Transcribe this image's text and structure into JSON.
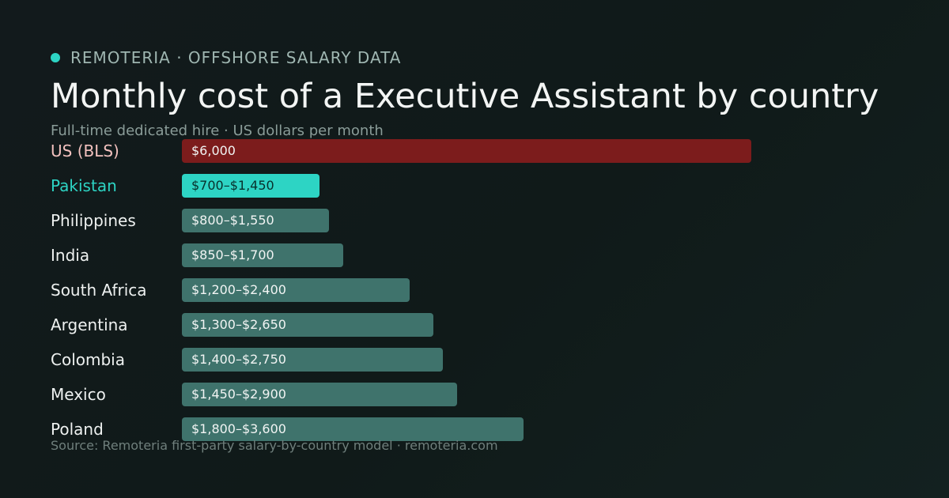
{
  "header": {
    "eyebrow": "REMOTERIA · OFFSHORE SALARY DATA",
    "title": "Monthly cost of a Executive Assistant by country",
    "subtitle": "Full-time dedicated hire · US dollars per month"
  },
  "footer": {
    "source": "Source: Remoteria first-party salary-by-country model · remoteria.com"
  },
  "colors": {
    "accent": "#2dd4c4",
    "us_bar": "#7c1c1c",
    "default_bar": "#3f736c",
    "background": "#121a1c"
  },
  "chart_data": {
    "type": "bar",
    "orientation": "horizontal",
    "title": "Monthly cost of a Executive Assistant by country",
    "subtitle": "Full-time dedicated hire · US dollars per month",
    "xmax": 6000,
    "rows": [
      {
        "category": "US (BLS)",
        "low": 6000,
        "high": 6000,
        "label": "$6,000",
        "highlight": "us"
      },
      {
        "category": "Pakistan",
        "low": 700,
        "high": 1450,
        "label": "$700–$1,450",
        "highlight": "accent"
      },
      {
        "category": "Philippines",
        "low": 800,
        "high": 1550,
        "label": "$800–$1,550",
        "highlight": "none"
      },
      {
        "category": "India",
        "low": 850,
        "high": 1700,
        "label": "$850–$1,700",
        "highlight": "none"
      },
      {
        "category": "South Africa",
        "low": 1200,
        "high": 2400,
        "label": "$1,200–$2,400",
        "highlight": "none"
      },
      {
        "category": "Argentina",
        "low": 1300,
        "high": 2650,
        "label": "$1,300–$2,650",
        "highlight": "none"
      },
      {
        "category": "Colombia",
        "low": 1400,
        "high": 2750,
        "label": "$1,400–$2,750",
        "highlight": "none"
      },
      {
        "category": "Mexico",
        "low": 1450,
        "high": 2900,
        "label": "$1,450–$2,900",
        "highlight": "none"
      },
      {
        "category": "Poland",
        "low": 1800,
        "high": 3600,
        "label": "$1,800–$3,600",
        "highlight": "none"
      }
    ]
  }
}
